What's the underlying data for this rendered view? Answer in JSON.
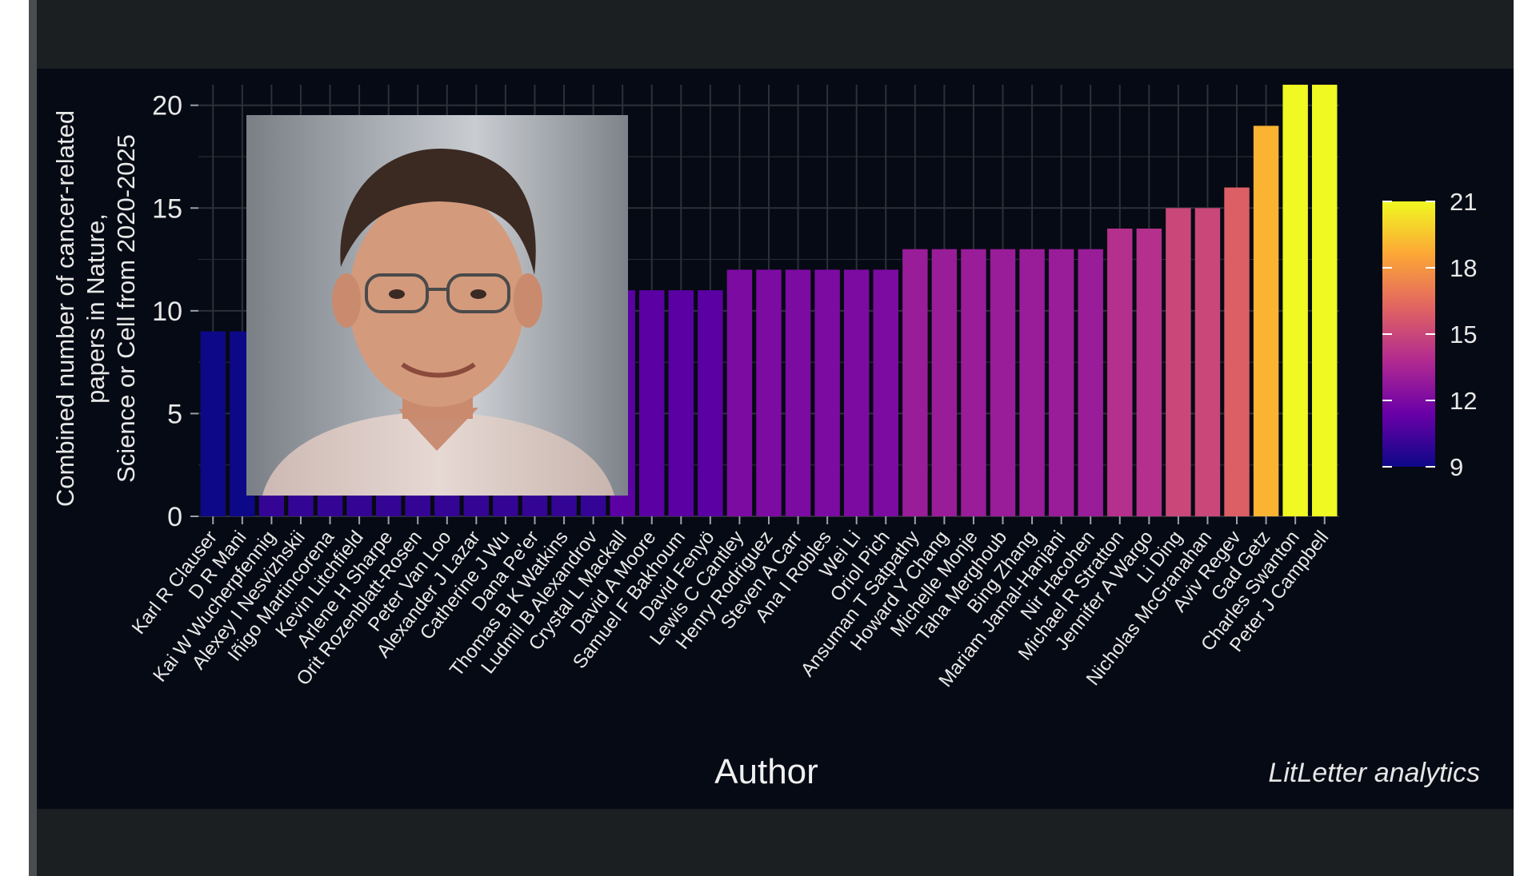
{
  "chart_data": {
    "type": "bar",
    "ylabel": "Combined number of cancer-related\npapers in Nature,\nScience or Cell from 2020-2025",
    "xlabel": "Author",
    "ylim": [
      0,
      21
    ],
    "yticks": [
      0,
      5,
      10,
      15,
      20
    ],
    "grid": true,
    "categories": [
      "Karl R Clauser",
      "D R Mani",
      "Kai W Wucherpfennig",
      "Alexey I Nesvizhskii",
      "Iñigo Martincorena",
      "Kevin Litchfield",
      "Arlene H Sharpe",
      "Orit Rozenblatt-Rosen",
      "Peter Van Loo",
      "Alexander J Lazar",
      "Catherine J Wu",
      "Dana Pe'er",
      "Thomas B K Watkins",
      "Ludmil B Alexandrov",
      "Crystal L Mackall",
      "David A Moore",
      "Samuel F Bakhoum",
      "David Fenyö",
      "Lewis C Cantley",
      "Henry Rodriguez",
      "Steven A Carr",
      "Ana I Robles",
      "Wei Li",
      "Oriol Pich",
      "Ansuman T Satpathy",
      "Howard Y Chang",
      "Michelle Monje",
      "Taha Merghoub",
      "Bing Zhang",
      "Mariam Jamal-Hanjani",
      "Nir Hacohen",
      "Michael R Stratton",
      "Jennifer A Wargo",
      "Li Ding",
      "Nicholas McGranahan",
      "Aviv Regev",
      "Gad Getz",
      "Charles Swanton",
      "Peter J Campbell"
    ],
    "values": [
      9,
      9,
      10,
      10,
      10,
      10,
      10,
      10,
      10,
      10,
      10,
      10,
      10,
      10,
      11,
      11,
      11,
      11,
      12,
      12,
      12,
      12,
      12,
      12,
      13,
      13,
      13,
      13,
      13,
      13,
      13,
      14,
      14,
      15,
      15,
      16,
      19,
      21,
      21
    ],
    "legend": {
      "type": "colorbar",
      "placement": "right",
      "ticks": [
        9,
        12,
        15,
        18,
        21
      ],
      "min": 9,
      "max": 21
    },
    "colormap_stops": [
      "#0d0887",
      "#6a00a8",
      "#b12a90",
      "#e16462",
      "#fca636",
      "#f0f921"
    ]
  },
  "credit": "LitLetter analytics",
  "image": {
    "description_icon": "portrait-photo"
  }
}
